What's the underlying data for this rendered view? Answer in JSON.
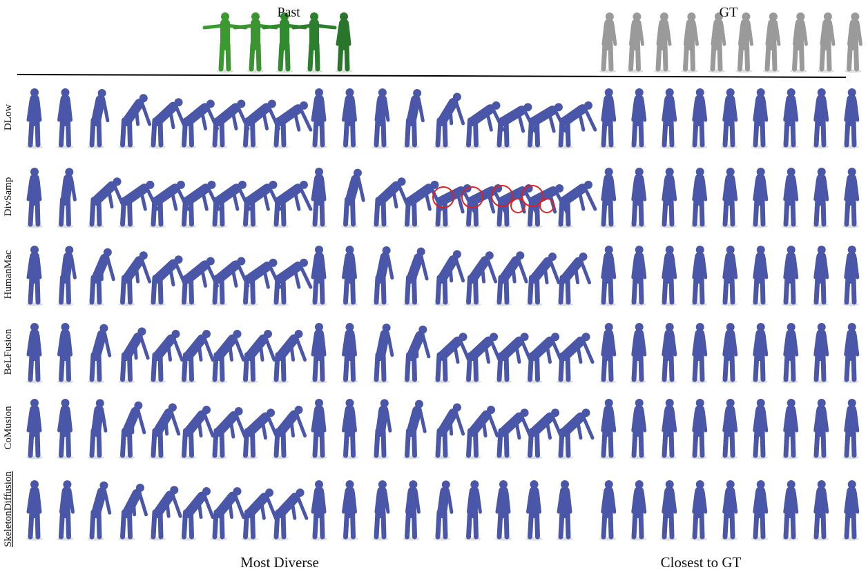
{
  "header": {
    "past": "Past",
    "gt": "GT"
  },
  "rows": [
    "DLow",
    "DivSamp",
    "HumanMac",
    "BeLFusion",
    "CoMusion",
    "SkeletonDiffusion"
  ],
  "footer": {
    "left": "Most Diverse",
    "right": "Closest to GT"
  }
}
